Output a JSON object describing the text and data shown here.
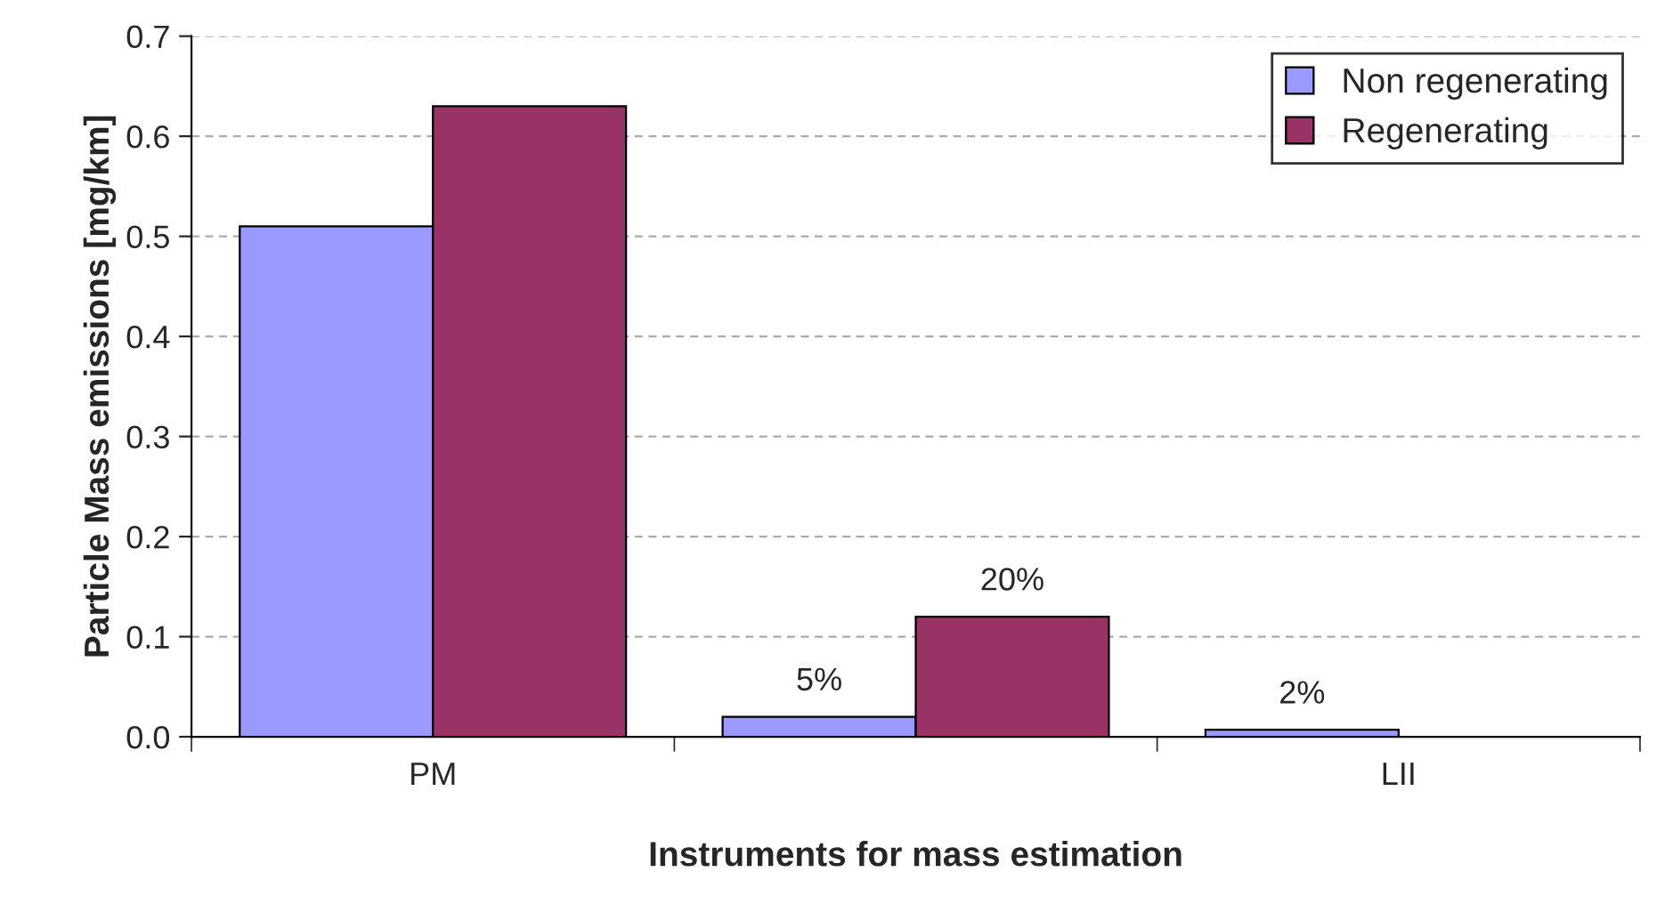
{
  "chart_data": {
    "type": "bar",
    "xlabel": "Instruments for mass estimation",
    "ylabel": "Particle Mass emissions [mg/km]",
    "categories": [
      "PM",
      null,
      "LII"
    ],
    "series": [
      {
        "name": "Non regenerating",
        "color": "#9999ff",
        "values": [
          0.51,
          0.02,
          0.007
        ]
      },
      {
        "name": "Regenerating",
        "color": "#993366",
        "values": [
          0.63,
          0.12,
          null
        ]
      }
    ],
    "annotations": [
      {
        "text": "5%",
        "y": 0.02
      },
      {
        "text": "20%",
        "y": 0.12
      },
      {
        "text": "2%",
        "x": "LII",
        "y": 0.007
      }
    ],
    "ylim": [
      0,
      0.7
    ],
    "yticks": [
      {
        "value": 0,
        "label": "0.0"
      },
      {
        "value": 0.1,
        "label": "0.1"
      },
      {
        "value": 0.2,
        "label": "0.2"
      },
      {
        "value": 0.3,
        "label": "0.3"
      },
      {
        "value": 0.4,
        "label": "0.4"
      },
      {
        "value": 0.5,
        "label": "0.5"
      },
      {
        "value": 0.6,
        "label": "0.6"
      },
      {
        "value": 0.7,
        "label": "0.7"
      }
    ],
    "grid": "y",
    "legend": "top right"
  }
}
